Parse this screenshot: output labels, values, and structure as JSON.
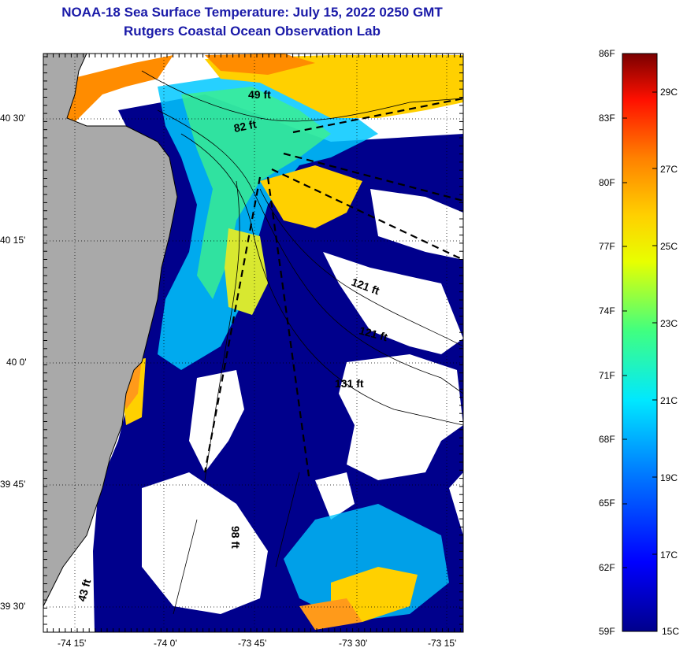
{
  "header": {
    "title": "NOAA-18 Sea Surface Temperature:  July 15, 2022 0250 GMT",
    "subtitle": "Rutgers Coastal Ocean Observation Lab"
  },
  "map": {
    "lon_labels": [
      "-74 15'",
      "-74 0'",
      "-73 45'",
      "-73 30'",
      "-73 15'"
    ],
    "lat_labels": [
      "40 30'",
      "40 15'",
      "40 0'",
      "39 45'",
      "39 30'"
    ],
    "depth_labels": [
      "49 ft",
      "82 ft",
      "121 ft",
      "121 ft",
      "131 ft",
      "43 ft",
      "98 ft"
    ],
    "colors": {
      "land": "#a9a9a9",
      "no_data": "#ffffff",
      "cold": "#00008c",
      "mid": "#00c8ff",
      "warm": "#ffd000",
      "hot": "#ff8000"
    }
  },
  "colorbar": {
    "f_labels": [
      "86F",
      "83F",
      "80F",
      "77F",
      "74F",
      "71F",
      "68F",
      "65F",
      "62F",
      "59F"
    ],
    "c_labels": [
      "29C",
      "27C",
      "25C",
      "23C",
      "21C",
      "19C",
      "17C",
      "15C"
    ]
  }
}
